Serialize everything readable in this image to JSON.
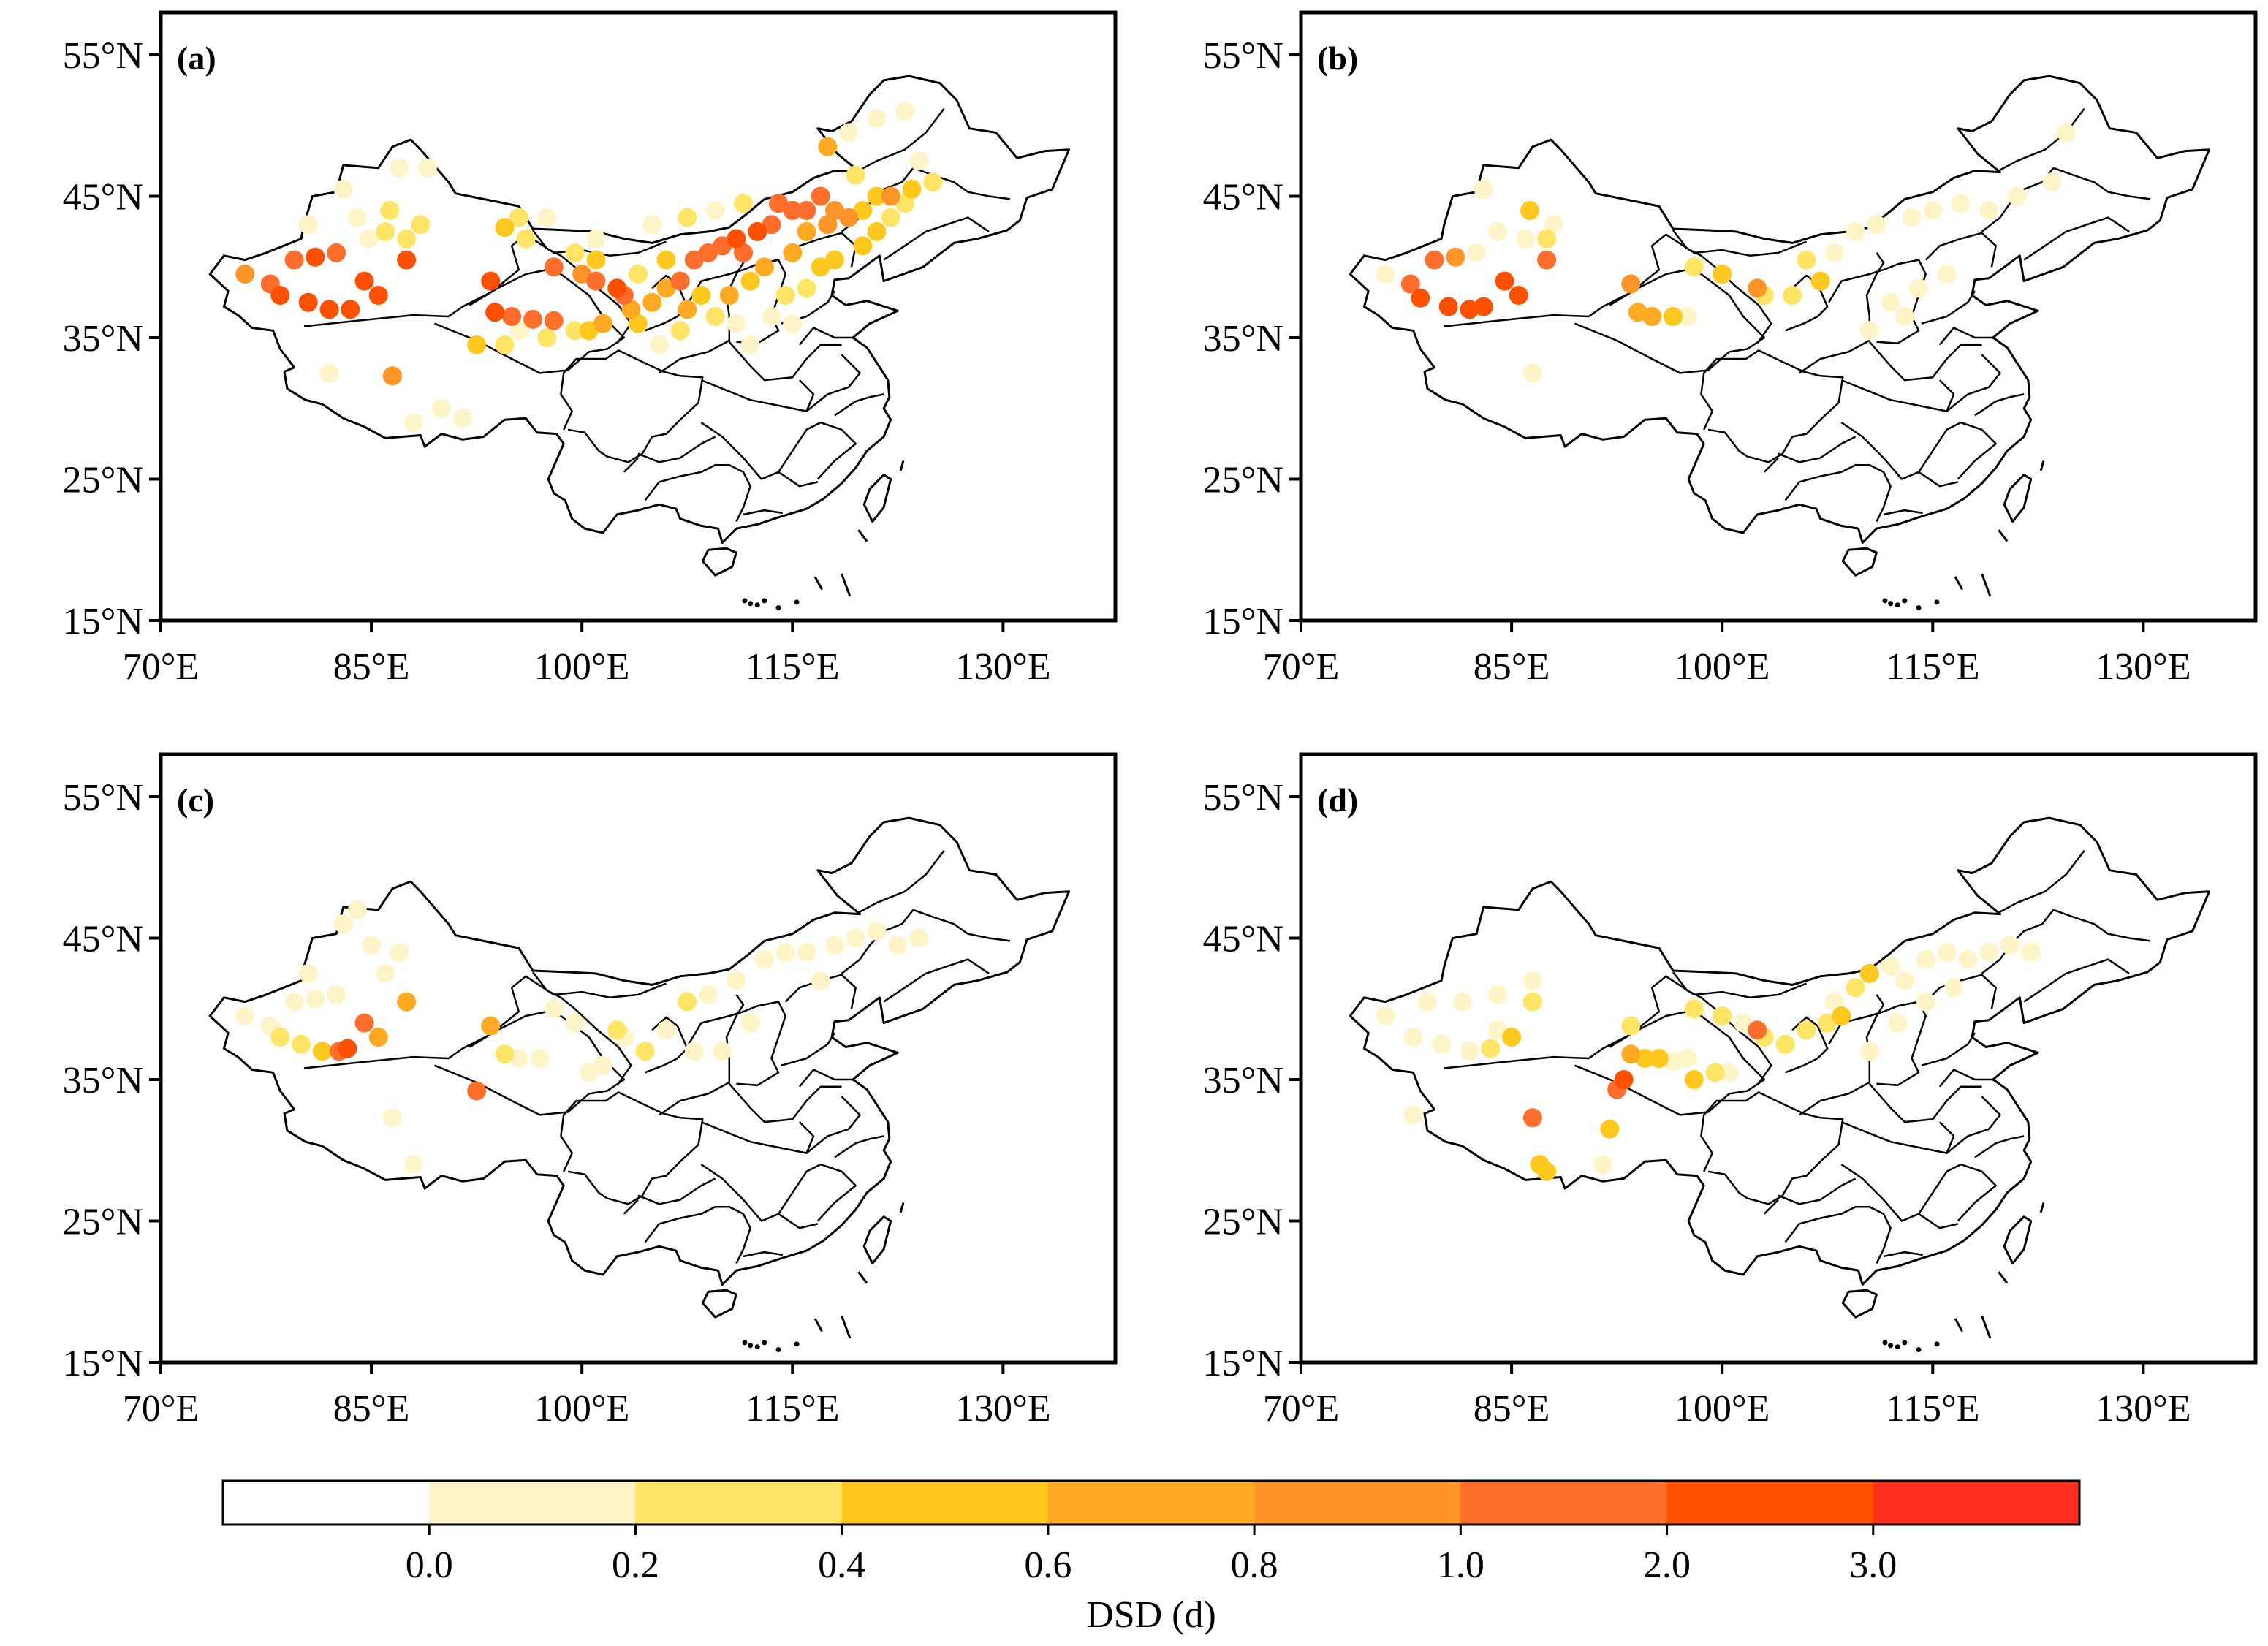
{
  "figure": {
    "lon_ticks": [
      "70°E",
      "85°E",
      "100°E",
      "115°E",
      "130°E"
    ],
    "lat_ticks": [
      "55°N",
      "45°N",
      "35°N",
      "25°N",
      "15°N"
    ],
    "lon_values": [
      70,
      85,
      100,
      115,
      130
    ],
    "lat_values": [
      55,
      45,
      35,
      25,
      15
    ],
    "extent": {
      "lon": [
        70,
        138
      ],
      "lat": [
        15,
        58
      ]
    }
  },
  "colorbar": {
    "title": "DSD  (d)",
    "tick_labels": [
      "0.0",
      "0.2",
      "0.4",
      "0.6",
      "0.8",
      "1.0",
      "2.0",
      "3.0"
    ],
    "colors": [
      "#ffffff",
      "#fff4c8",
      "#ffe466",
      "#ffc81e",
      "#ffaa22",
      "#ff9428",
      "#ff6e2d",
      "#ff5000",
      "#ff2d1e"
    ]
  },
  "chart_data": [
    {
      "type": "scatter-map",
      "panel": "(a)",
      "stations": [
        [
          76,
          39.5,
          5
        ],
        [
          77.8,
          38.8,
          6
        ],
        [
          78.5,
          38,
          7
        ],
        [
          80.5,
          37.5,
          7
        ],
        [
          82,
          37,
          7
        ],
        [
          79.5,
          40.5,
          6
        ],
        [
          81,
          40.7,
          7
        ],
        [
          82.5,
          41,
          6
        ],
        [
          83.5,
          37,
          7
        ],
        [
          84.5,
          39,
          7
        ],
        [
          85.5,
          38,
          7
        ],
        [
          87.5,
          40.5,
          7
        ],
        [
          83,
          45.5,
          1
        ],
        [
          86.3,
          44,
          2
        ],
        [
          84.8,
          42,
          1
        ],
        [
          86,
          42.5,
          2
        ],
        [
          87.5,
          42,
          2
        ],
        [
          88.5,
          43,
          2
        ],
        [
          84,
          43.5,
          1
        ],
        [
          87,
          47,
          1
        ],
        [
          89,
          47,
          1
        ],
        [
          80.5,
          43,
          1
        ],
        [
          86.5,
          32.3,
          5
        ],
        [
          82,
          32.5,
          1
        ],
        [
          90,
          30,
          1
        ],
        [
          91.5,
          29.3,
          1
        ],
        [
          88,
          29,
          1
        ],
        [
          93.5,
          39,
          7
        ],
        [
          93.8,
          36.8,
          7
        ],
        [
          95,
          36.5,
          6
        ],
        [
          96.5,
          36.3,
          6
        ],
        [
          98,
          36.2,
          6
        ],
        [
          92.5,
          34.5,
          3
        ],
        [
          94.5,
          34.5,
          2
        ],
        [
          95.5,
          35.5,
          1
        ],
        [
          97.5,
          35,
          2
        ],
        [
          99.5,
          35.5,
          2
        ],
        [
          100.5,
          35.5,
          3
        ],
        [
          101.5,
          36,
          4
        ],
        [
          98,
          40,
          6
        ],
        [
          100,
          39.5,
          5
        ],
        [
          101,
          39,
          6
        ],
        [
          102.5,
          38.5,
          7
        ],
        [
          103,
          38,
          6
        ],
        [
          103.5,
          37,
          4
        ],
        [
          104,
          36,
          3
        ],
        [
          105,
          37.5,
          4
        ],
        [
          106,
          38.5,
          4
        ],
        [
          107,
          39,
          6
        ],
        [
          107.5,
          37,
          4
        ],
        [
          108.5,
          38,
          3
        ],
        [
          108,
          40.5,
          6
        ],
        [
          109,
          41,
          6
        ],
        [
          110,
          41.5,
          6
        ],
        [
          111,
          42,
          7
        ],
        [
          111.5,
          41,
          6
        ],
        [
          112.5,
          42.5,
          7
        ],
        [
          113.5,
          43,
          6
        ],
        [
          114,
          44.5,
          6
        ],
        [
          115,
          44,
          6
        ],
        [
          116,
          44,
          6
        ],
        [
          117,
          45,
          6
        ],
        [
          118,
          44,
          5
        ],
        [
          119,
          43.5,
          5
        ],
        [
          117.5,
          43,
          5
        ],
        [
          116,
          42.5,
          4
        ],
        [
          115,
          41,
          4
        ],
        [
          113,
          40,
          4
        ],
        [
          112,
          39,
          3
        ],
        [
          110.5,
          38,
          4
        ],
        [
          109.5,
          36.5,
          2
        ],
        [
          107,
          35.5,
          2
        ],
        [
          105.5,
          34.5,
          1
        ],
        [
          111,
          36,
          1
        ],
        [
          113.5,
          36.5,
          1
        ],
        [
          116,
          38.5,
          2
        ],
        [
          118,
          40.5,
          3
        ],
        [
          120,
          41.5,
          3
        ],
        [
          121,
          42.5,
          3
        ],
        [
          122,
          43.5,
          2
        ],
        [
          123,
          44.5,
          2
        ],
        [
          121,
          45,
          3
        ],
        [
          119.5,
          46.5,
          2
        ],
        [
          117.5,
          48.5,
          4
        ],
        [
          119,
          49.5,
          1
        ],
        [
          121,
          50.5,
          1
        ],
        [
          123,
          51,
          1
        ],
        [
          124,
          47.5,
          1
        ],
        [
          125,
          46,
          2
        ],
        [
          123.5,
          45.5,
          3
        ],
        [
          122,
          45,
          5
        ],
        [
          120,
          44,
          3
        ],
        [
          117,
          40,
          3
        ],
        [
          114.5,
          38,
          2
        ],
        [
          112,
          34.5,
          1
        ],
        [
          115,
          36,
          1
        ],
        [
          107.5,
          43.5,
          2
        ],
        [
          106,
          40.5,
          3
        ],
        [
          109.5,
          44,
          1
        ],
        [
          111.5,
          44.5,
          2
        ],
        [
          105,
          43,
          1
        ],
        [
          101,
          42,
          1
        ],
        [
          99.5,
          41,
          2
        ],
        [
          96,
          42,
          2
        ],
        [
          95.5,
          43.5,
          2
        ],
        [
          94.5,
          42.8,
          3
        ],
        [
          97.5,
          43.5,
          1
        ],
        [
          101,
          40.5,
          3
        ],
        [
          104,
          39.5,
          2
        ]
      ]
    },
    {
      "type": "scatter-map",
      "panel": "(b)",
      "stations": [
        [
          76,
          39.5,
          1
        ],
        [
          77.8,
          38.8,
          6
        ],
        [
          78.5,
          37.8,
          7
        ],
        [
          80.5,
          37.2,
          7
        ],
        [
          82,
          37,
          7
        ],
        [
          83,
          37.2,
          7
        ],
        [
          84.5,
          39,
          7
        ],
        [
          85.5,
          38,
          7
        ],
        [
          79.5,
          40.5,
          6
        ],
        [
          81,
          40.7,
          5
        ],
        [
          82.5,
          41,
          1
        ],
        [
          87.5,
          40.5,
          6
        ],
        [
          86.3,
          44,
          3
        ],
        [
          87.5,
          42,
          2
        ],
        [
          86,
          42,
          1
        ],
        [
          88,
          43,
          1
        ],
        [
          83,
          45.5,
          1
        ],
        [
          86.5,
          32.5,
          1
        ],
        [
          84,
          42.5,
          1
        ],
        [
          93.5,
          38.8,
          5
        ],
        [
          94,
          36.8,
          4
        ],
        [
          95,
          36.5,
          4
        ],
        [
          96.5,
          36.5,
          3
        ],
        [
          97.5,
          36.5,
          1
        ],
        [
          98,
          40,
          2
        ],
        [
          100,
          39.5,
          3
        ],
        [
          102.5,
          38.5,
          5
        ],
        [
          103,
          38,
          2
        ],
        [
          105,
          38,
          2
        ],
        [
          106,
          40.5,
          2
        ],
        [
          107,
          39,
          3
        ],
        [
          108,
          41,
          1
        ],
        [
          109.5,
          42.5,
          1
        ],
        [
          111,
          43,
          1
        ],
        [
          113.5,
          43.5,
          1
        ],
        [
          115,
          44,
          1
        ],
        [
          117,
          44.5,
          1
        ],
        [
          119,
          44,
          1
        ],
        [
          121,
          45,
          1
        ],
        [
          123.5,
          46,
          1
        ],
        [
          124.5,
          49.5,
          1
        ],
        [
          112,
          37.5,
          1
        ],
        [
          114,
          38.5,
          1
        ],
        [
          116,
          39.5,
          1
        ],
        [
          113,
          36.5,
          1
        ],
        [
          110.5,
          35.5,
          1
        ]
      ]
    },
    {
      "type": "scatter-map",
      "panel": "(c)",
      "stations": [
        [
          76,
          39.5,
          1
        ],
        [
          77.8,
          38.8,
          1
        ],
        [
          78.5,
          38,
          2
        ],
        [
          80,
          37.5,
          2
        ],
        [
          81.5,
          37,
          3
        ],
        [
          82.7,
          37,
          6
        ],
        [
          83.3,
          37.2,
          7
        ],
        [
          84.5,
          39,
          6
        ],
        [
          85.5,
          38,
          4
        ],
        [
          87.5,
          40.5,
          4
        ],
        [
          79.5,
          40.5,
          1
        ],
        [
          81,
          40.7,
          1
        ],
        [
          82.5,
          41,
          1
        ],
        [
          86,
          42.5,
          1
        ],
        [
          87,
          44,
          1
        ],
        [
          85,
          44.5,
          1
        ],
        [
          83,
          46,
          1
        ],
        [
          84,
          47,
          1
        ],
        [
          86.5,
          32.3,
          1
        ],
        [
          88,
          29,
          1
        ],
        [
          80.5,
          42.5,
          1
        ],
        [
          92.5,
          34.2,
          6
        ],
        [
          93.5,
          38.8,
          4
        ],
        [
          94.5,
          36.8,
          2
        ],
        [
          95.5,
          36.5,
          1
        ],
        [
          97,
          36.5,
          1
        ],
        [
          98,
          40,
          1
        ],
        [
          99.5,
          39,
          1
        ],
        [
          100.5,
          35.5,
          1
        ],
        [
          101.5,
          36,
          1
        ],
        [
          102.5,
          38.5,
          2
        ],
        [
          103,
          38,
          1
        ],
        [
          104.5,
          37,
          2
        ],
        [
          106,
          38.5,
          1
        ],
        [
          107.5,
          40.5,
          2
        ],
        [
          109,
          41,
          1
        ],
        [
          111,
          42,
          1
        ],
        [
          113,
          43.5,
          1
        ],
        [
          114.5,
          44,
          1
        ],
        [
          116,
          44,
          1
        ],
        [
          118,
          44.5,
          1
        ],
        [
          119.5,
          45,
          1
        ],
        [
          121,
          45.5,
          1
        ],
        [
          122.5,
          44.5,
          1
        ],
        [
          124,
          45,
          1
        ],
        [
          117,
          42,
          1
        ],
        [
          112,
          39,
          1
        ],
        [
          110,
          37,
          1
        ],
        [
          108,
          37,
          1
        ]
      ]
    },
    {
      "type": "scatter-map",
      "panel": "(d)",
      "stations": [
        [
          76,
          39.5,
          1
        ],
        [
          78,
          38,
          1
        ],
        [
          80,
          37.5,
          1
        ],
        [
          82,
          37,
          1
        ],
        [
          83.5,
          37.2,
          2
        ],
        [
          85,
          38,
          3
        ],
        [
          84,
          38.5,
          1
        ],
        [
          86.5,
          40.5,
          2
        ],
        [
          86.5,
          42,
          1
        ],
        [
          84,
          41,
          1
        ],
        [
          81.5,
          40.5,
          1
        ],
        [
          79,
          40.5,
          1
        ],
        [
          86.5,
          32.3,
          6
        ],
        [
          87,
          29,
          3
        ],
        [
          87.5,
          28.5,
          3
        ],
        [
          91.5,
          29,
          1
        ],
        [
          92,
          31.5,
          3
        ],
        [
          78,
          32.5,
          1
        ],
        [
          92.5,
          34.3,
          6
        ],
        [
          93,
          35,
          7
        ],
        [
          93.5,
          36.8,
          4
        ],
        [
          94.5,
          36.5,
          3
        ],
        [
          95.5,
          36.5,
          3
        ],
        [
          93.5,
          38.8,
          2
        ],
        [
          96.5,
          36.3,
          1
        ],
        [
          97.5,
          36.5,
          1
        ],
        [
          98,
          35,
          3
        ],
        [
          99.5,
          35.5,
          2
        ],
        [
          100.5,
          35.5,
          1
        ],
        [
          98,
          40,
          2
        ],
        [
          100,
          39.5,
          2
        ],
        [
          101.5,
          39,
          1
        ],
        [
          102.5,
          38.5,
          6
        ],
        [
          103,
          38,
          2
        ],
        [
          104.5,
          37.5,
          2
        ],
        [
          106,
          38.5,
          2
        ],
        [
          107.5,
          39,
          2
        ],
        [
          108.5,
          39.5,
          3
        ],
        [
          108,
          40.5,
          1
        ],
        [
          109.5,
          41.5,
          2
        ],
        [
          110.5,
          42.5,
          3
        ],
        [
          112,
          43,
          1
        ],
        [
          113,
          42,
          1
        ],
        [
          114.5,
          43.5,
          1
        ],
        [
          116,
          44,
          1
        ],
        [
          117.5,
          43.5,
          1
        ],
        [
          119,
          44,
          1
        ],
        [
          120.5,
          44.5,
          1
        ],
        [
          122,
          44,
          1
        ],
        [
          116.5,
          41.5,
          1
        ],
        [
          114.5,
          40.5,
          1
        ],
        [
          112.5,
          39,
          1
        ],
        [
          110.5,
          37,
          1
        ]
      ]
    }
  ]
}
